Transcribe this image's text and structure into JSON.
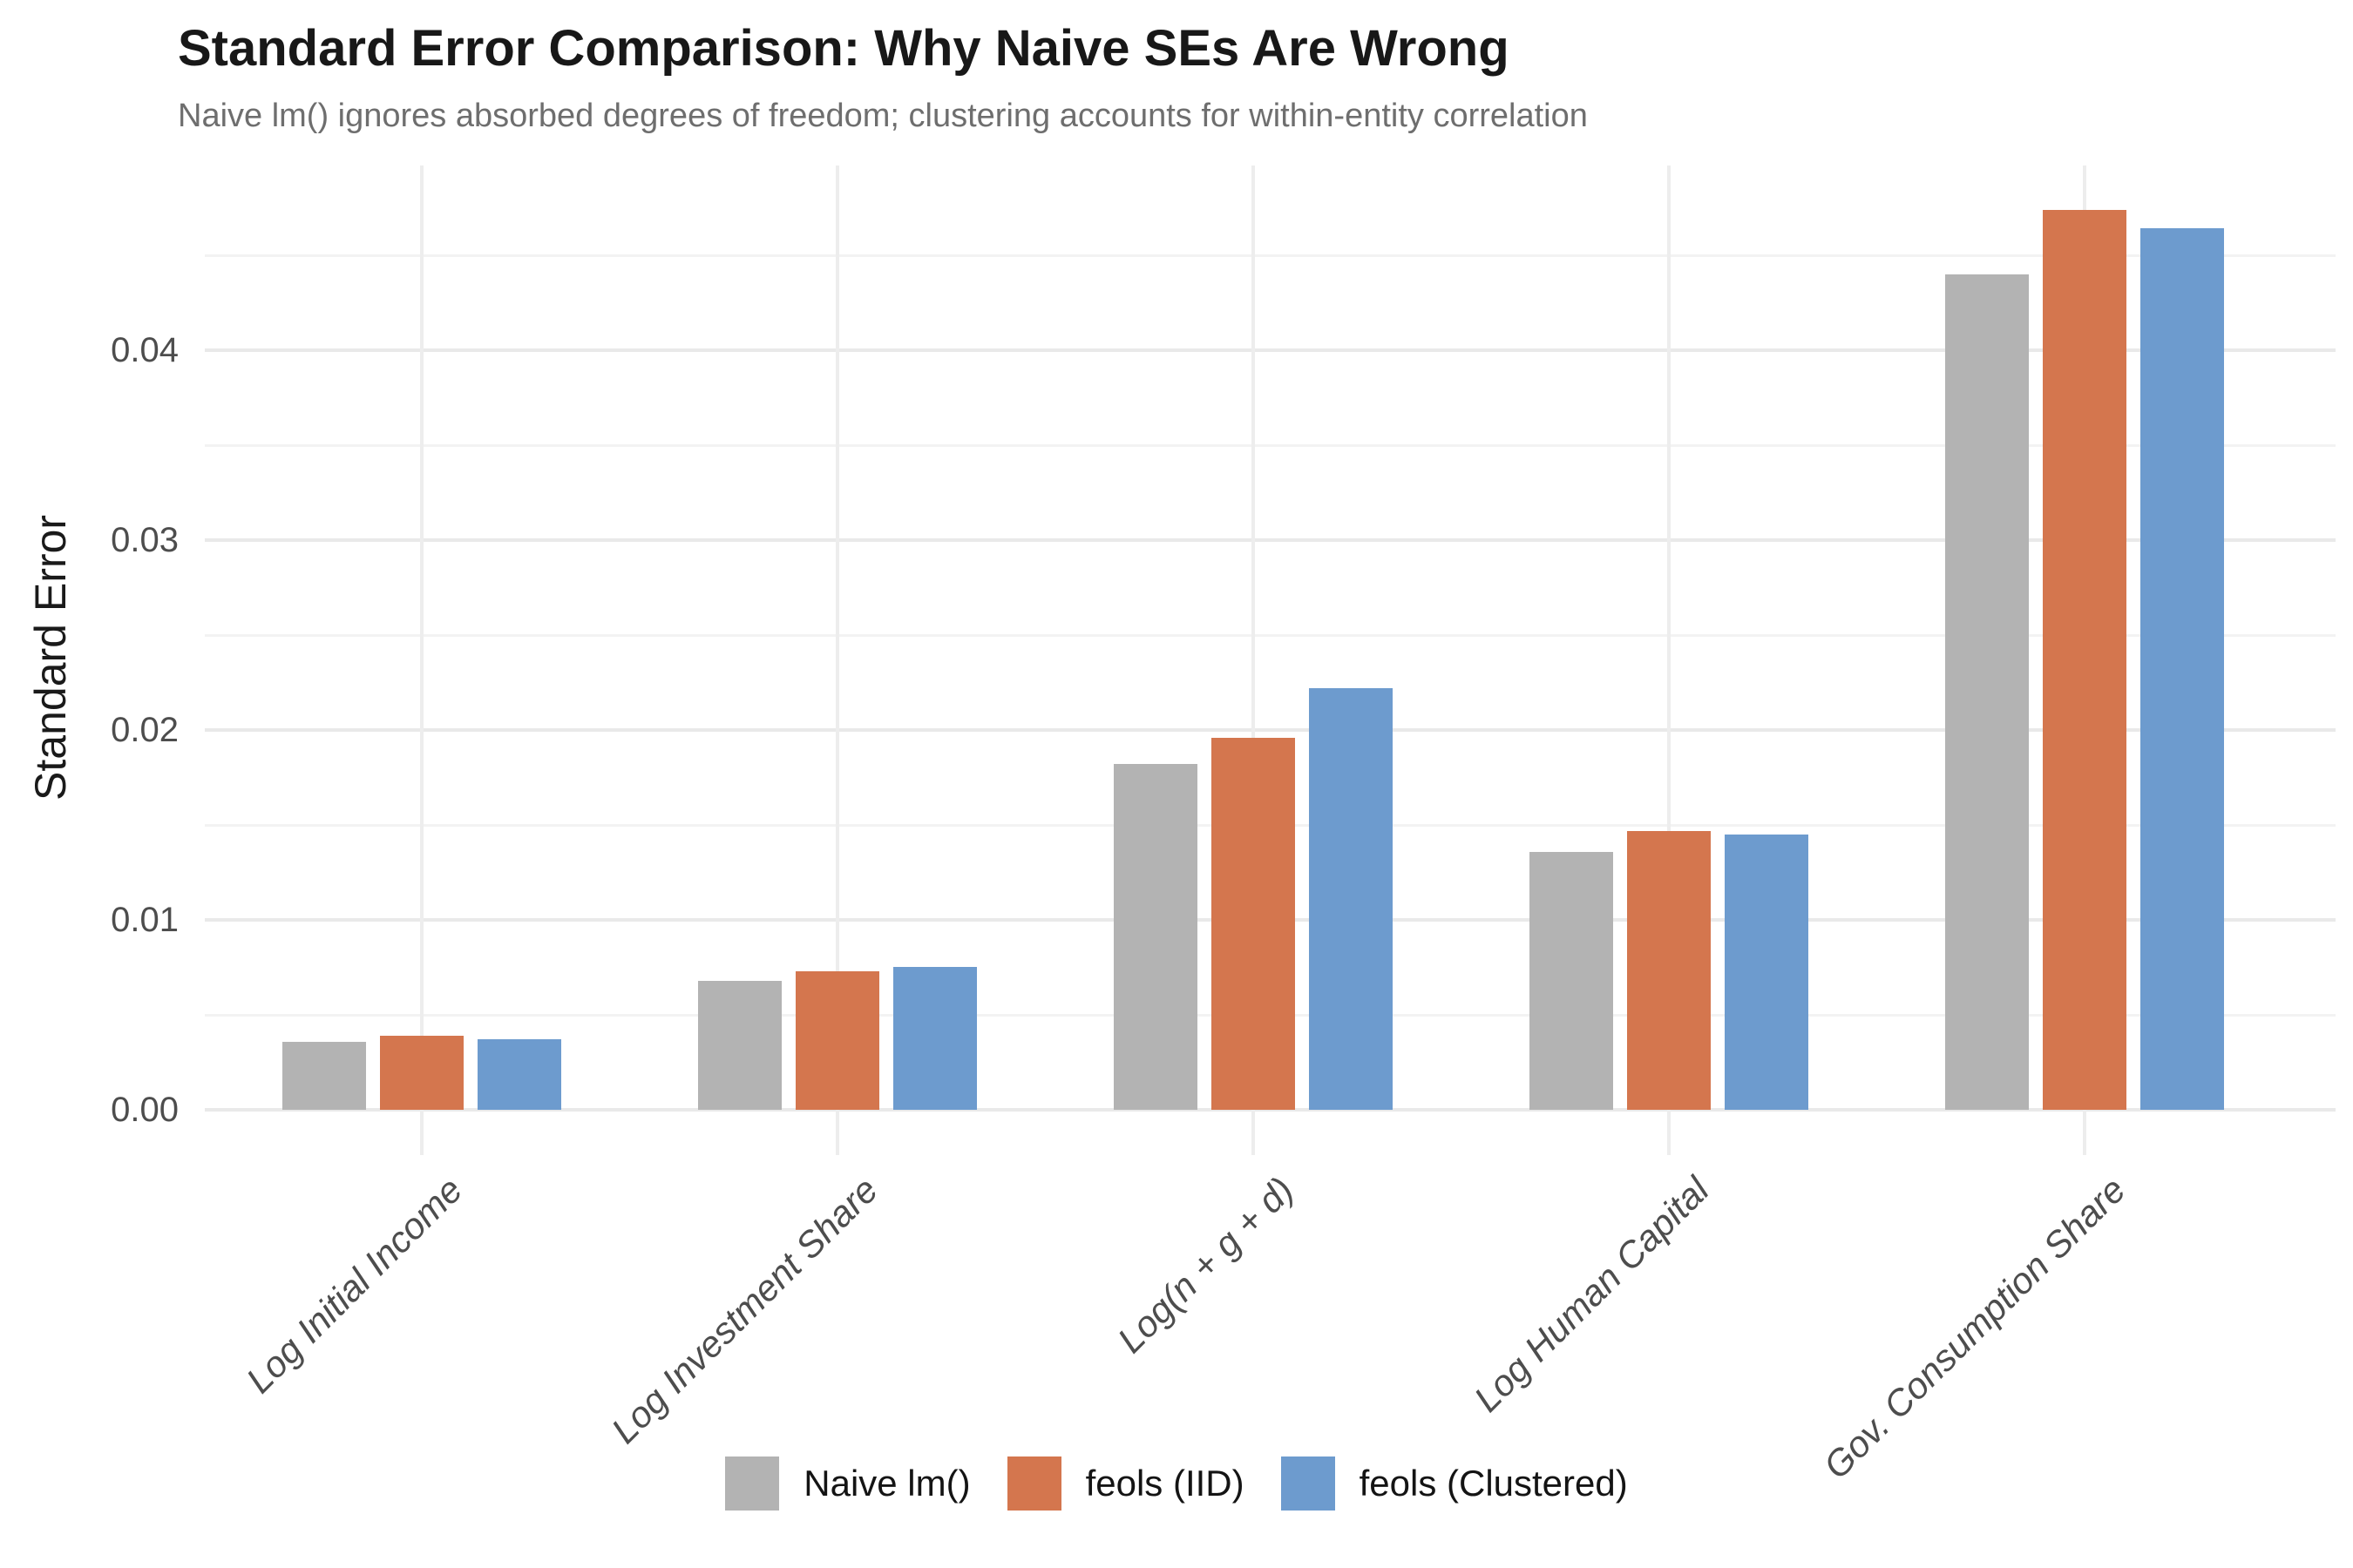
{
  "title": "Standard Error Comparison: Why Naive SEs Are Wrong",
  "subtitle": "Naive lm() ignores absorbed degrees of freedom; clustering accounts for within-entity correlation",
  "chart_data": {
    "type": "bar",
    "title": "Standard Error Comparison: Why Naive SEs Are Wrong",
    "subtitle": "Naive lm() ignores absorbed degrees of freedom; clustering accounts for within-entity correlation",
    "categories": [
      "Log Initial Income",
      "Log Investment Share",
      "Log(n + g + d)",
      "Log Human Capital",
      "Gov. Consumption Share"
    ],
    "series": [
      {
        "name": "Naive lm()",
        "color": "#b3b3b3",
        "values": [
          0.0036,
          0.0068,
          0.0182,
          0.0136,
          0.044
        ]
      },
      {
        "name": "feols (IID)",
        "color": "#d4764e",
        "values": [
          0.0039,
          0.0073,
          0.0196,
          0.0147,
          0.0474
        ]
      },
      {
        "name": "feols (Clustered)",
        "color": "#6d9bce",
        "values": [
          0.0037,
          0.0075,
          0.0222,
          0.0145,
          0.0464
        ]
      }
    ],
    "xlabel": "",
    "ylabel": "Standard Error",
    "y_ticks": [
      0.0,
      0.01,
      0.02,
      0.03,
      0.04
    ],
    "y_tick_labels": [
      "0.00",
      "0.01",
      "0.02",
      "0.03",
      "0.04"
    ],
    "y_minor_ticks": [
      0.005,
      0.015,
      0.025,
      0.035,
      0.045
    ],
    "ylim": [
      0,
      0.0487
    ],
    "grid": "major+minor horizontal, major vertical at categories",
    "legend_position": "bottom",
    "bar_style": "dodged, no border",
    "x_label_style": "italic, rotated 45deg"
  },
  "colors": {
    "background": "#ffffff",
    "title_text": "#181818",
    "subtitle_text": "#6e6e6e",
    "axis_text": "#4d4d4d",
    "grid_major": "#e9e9e9",
    "grid_minor": "#f3f3f3"
  }
}
